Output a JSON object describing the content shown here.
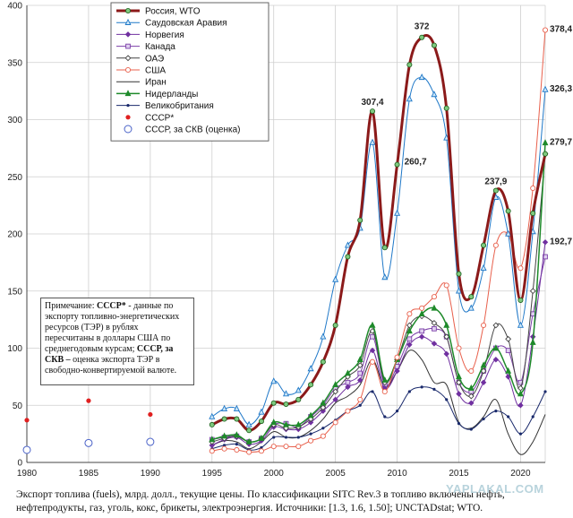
{
  "chart_data": {
    "type": "line",
    "ylim": [
      0,
      400
    ],
    "yticks": [
      0,
      50,
      100,
      150,
      200,
      250,
      300,
      350,
      400
    ],
    "xlim": [
      1980,
      2022
    ],
    "xticks": [
      1980,
      1985,
      1990,
      1995,
      2000,
      2005,
      2010,
      2015,
      2020
    ],
    "grid": true,
    "legend_position": "top-left",
    "series": [
      {
        "name": "Россия, WTO",
        "color": "#8b1a1a",
        "marker": "circle",
        "width": 3,
        "x": [
          1995,
          1996,
          1997,
          1998,
          1999,
          2000,
          2001,
          2002,
          2003,
          2004,
          2005,
          2006,
          2007,
          2008,
          2009,
          2010,
          2011,
          2012,
          2013,
          2014,
          2015,
          2016,
          2017,
          2018,
          2019,
          2020,
          2021,
          2022
        ],
        "y": [
          33,
          38,
          38,
          28,
          36,
          52,
          51,
          55,
          68,
          88,
          120,
          180,
          212,
          307.4,
          188,
          260.7,
          348,
          372,
          365,
          310,
          165,
          145,
          190,
          237.9,
          220,
          142,
          218,
          270
        ]
      },
      {
        "name": "Саудовская Аравия",
        "color": "#1f78c8",
        "marker": "triangle",
        "width": 1,
        "x": [
          1995,
          1996,
          1997,
          1998,
          1999,
          2000,
          2001,
          2002,
          2003,
          2004,
          2005,
          2006,
          2007,
          2008,
          2009,
          2010,
          2011,
          2012,
          2013,
          2014,
          2015,
          2016,
          2017,
          2018,
          2019,
          2020,
          2021,
          2022
        ],
        "y": [
          40,
          47,
          47,
          33,
          44,
          71,
          60,
          63,
          82,
          110,
          160,
          190,
          205,
          280,
          162,
          218,
          318,
          337,
          322,
          284,
          150,
          135,
          170,
          232,
          200,
          120,
          202,
          326.3
        ]
      },
      {
        "name": "Норвегия",
        "color": "#7030a0",
        "marker": "diamond",
        "width": 1,
        "x": [
          1995,
          1996,
          1997,
          1998,
          1999,
          2000,
          2001,
          2002,
          2003,
          2004,
          2005,
          2006,
          2007,
          2008,
          2009,
          2010,
          2011,
          2012,
          2013,
          2014,
          2015,
          2016,
          2017,
          2018,
          2019,
          2020,
          2021,
          2022
        ],
        "y": [
          15,
          20,
          22,
          16,
          19,
          31,
          29,
          29,
          35,
          45,
          55,
          66,
          72,
          98,
          65,
          80,
          103,
          110,
          104,
          95,
          60,
          52,
          70,
          90,
          75,
          50,
          110,
          192.7
        ]
      },
      {
        "name": "Канада",
        "color": "#7b3fa8",
        "marker": "square",
        "width": 1,
        "x": [
          1995,
          1996,
          1997,
          1998,
          1999,
          2000,
          2001,
          2002,
          2003,
          2004,
          2005,
          2006,
          2007,
          2008,
          2009,
          2010,
          2011,
          2012,
          2013,
          2014,
          2015,
          2016,
          2017,
          2018,
          2019,
          2020,
          2021,
          2022
        ],
        "y": [
          20,
          22,
          23,
          18,
          21,
          33,
          34,
          31,
          40,
          50,
          65,
          70,
          78,
          110,
          68,
          84,
          108,
          115,
          117,
          110,
          70,
          62,
          80,
          100,
          98,
          70,
          130,
          180
        ]
      },
      {
        "name": "ОАЭ",
        "color": "#444444",
        "marker": "diamond-open",
        "width": 1,
        "x": [
          1995,
          1996,
          1997,
          1998,
          1999,
          2000,
          2001,
          2002,
          2003,
          2004,
          2005,
          2006,
          2007,
          2008,
          2009,
          2010,
          2011,
          2012,
          2013,
          2014,
          2015,
          2016,
          2017,
          2018,
          2019,
          2020,
          2021,
          2022
        ],
        "y": [
          18,
          21,
          23,
          18,
          21,
          33,
          30,
          31,
          38,
          48,
          62,
          75,
          85,
          115,
          70,
          90,
          120,
          128,
          122,
          110,
          70,
          58,
          80,
          120,
          108,
          65,
          150,
          270
        ]
      },
      {
        "name": "США",
        "color": "#e8604c",
        "marker": "circle-open",
        "width": 1,
        "x": [
          1995,
          1996,
          1997,
          1998,
          1999,
          2000,
          2001,
          2002,
          2003,
          2004,
          2005,
          2006,
          2007,
          2008,
          2009,
          2010,
          2011,
          2012,
          2013,
          2014,
          2015,
          2016,
          2017,
          2018,
          2019,
          2020,
          2021,
          2022
        ],
        "y": [
          10,
          12,
          11,
          9,
          10,
          14,
          14,
          14,
          19,
          23,
          35,
          45,
          55,
          88,
          62,
          92,
          130,
          135,
          145,
          155,
          100,
          80,
          120,
          190,
          200,
          170,
          240,
          378.4
        ]
      },
      {
        "name": "Иран",
        "color": "#333333",
        "marker": "none",
        "width": 1,
        "x": [
          1995,
          1996,
          1997,
          1998,
          1999,
          2000,
          2001,
          2002,
          2003,
          2004,
          2005,
          2006,
          2007,
          2008,
          2009,
          2010,
          2011,
          2012,
          2013,
          2014,
          2015,
          2016,
          2017,
          2018,
          2019,
          2020,
          2021,
          2022
        ],
        "y": [
          15,
          19,
          18,
          12,
          18,
          27,
          22,
          22,
          28,
          38,
          52,
          58,
          68,
          90,
          66,
          80,
          98,
          90,
          70,
          68,
          35,
          30,
          40,
          55,
          25,
          7,
          18,
          42
        ]
      },
      {
        "name": "Нидерланды",
        "color": "#1e8a2a",
        "marker": "triangle-filled",
        "width": 1.5,
        "x": [
          1995,
          1996,
          1997,
          1998,
          1999,
          2000,
          2001,
          2002,
          2003,
          2004,
          2005,
          2006,
          2007,
          2008,
          2009,
          2010,
          2011,
          2012,
          2013,
          2014,
          2015,
          2016,
          2017,
          2018,
          2019,
          2020,
          2021,
          2022
        ],
        "y": [
          20,
          23,
          24,
          18,
          21,
          35,
          33,
          33,
          41,
          52,
          68,
          78,
          90,
          120,
          72,
          90,
          115,
          130,
          135,
          120,
          75,
          65,
          85,
          100,
          80,
          60,
          105,
          279.7
        ]
      },
      {
        "name": "Великобритания",
        "color": "#1a2a6c",
        "marker": "dot",
        "width": 1,
        "x": [
          1995,
          1996,
          1997,
          1998,
          1999,
          2000,
          2001,
          2002,
          2003,
          2004,
          2005,
          2006,
          2007,
          2008,
          2009,
          2010,
          2011,
          2012,
          2013,
          2014,
          2015,
          2016,
          2017,
          2018,
          2019,
          2020,
          2021,
          2022
        ],
        "y": [
          12,
          15,
          16,
          11,
          13,
          22,
          22,
          22,
          25,
          30,
          37,
          45,
          50,
          62,
          40,
          45,
          62,
          66,
          64,
          55,
          34,
          29,
          38,
          45,
          40,
          25,
          40,
          62
        ]
      },
      {
        "name": "СССР*",
        "color": "#e02020",
        "marker": "dot-red",
        "width": 0,
        "x": [
          1980,
          1985,
          1990
        ],
        "y": [
          37,
          54,
          42
        ]
      },
      {
        "name": "СССР, за СКВ (оценка)",
        "color": "#4a62c8",
        "marker": "circle-open-blue",
        "width": 0,
        "x": [
          1980,
          1985,
          1990
        ],
        "y": [
          11,
          17,
          18
        ]
      }
    ],
    "data_labels": [
      {
        "x": 2008,
        "y": 307.4,
        "text": "307,4"
      },
      {
        "x": 2010,
        "y": 260.7,
        "text": "260,7"
      },
      {
        "x": 2012,
        "y": 372,
        "text": "372"
      },
      {
        "x": 2018,
        "y": 237.9,
        "text": "237,9"
      },
      {
        "x": 2022,
        "y": 378.4,
        "text": "378,4"
      },
      {
        "x": 2022,
        "y": 326.3,
        "text": "326,3"
      },
      {
        "x": 2022,
        "y": 279.7,
        "text": "279,7"
      },
      {
        "x": 2022,
        "y": 192.7,
        "text": "192,7"
      }
    ]
  },
  "note": {
    "prefix": "Примечание: ",
    "ussr_bold": "СССР*",
    "text1": " - данные по экспорту топливно-энергетических ресурсов (ТЭР) в рублях пересчитаны в доллары США по среднегодовым курсам; ",
    "ussr_skv_bold": "СССР, за СКВ –",
    "text2": " оценка экспорта ТЭР в свободно-конвертируемой валюте."
  },
  "caption": "Экспорт топлива (fuels), млрд. долл., текущие цены. По классификации SITC Rev.3 в топливо включены нефть, нефтепродукты, газ, уголь, кокс, брикеты, электроэнергия. Источники: [1.3, 1.6, 1.50]; UNCTADstat; WTO.",
  "watermark": "YAPLAKAL.COM"
}
